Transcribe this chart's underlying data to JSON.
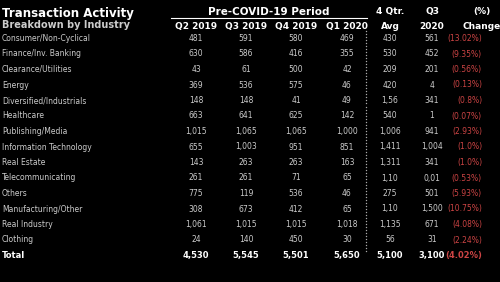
{
  "title": "Transaction Activity",
  "subtitle": "Breakdown by Industry",
  "header_group": "Pre-COVID-19 Period",
  "bg_color": "#000000",
  "text_color": "#cccccc",
  "header_text_color": "#ffffff",
  "change_neg_color": "#cc4444",
  "dotted_color": "#888888",
  "rows": [
    {
      "label": "Consumer/Non-Cyclical",
      "q2": "481",
      "q3": "591",
      "q4": "580",
      "q1": "469",
      "avg": "430",
      "q3_20": "561",
      "chg": "(13.02%)"
    },
    {
      "label": "Finance/Inv. Banking",
      "q2": "630",
      "q3": "586",
      "q4": "416",
      "q1": "355",
      "avg": "530",
      "q3_20": "452",
      "chg": "(9.35%)"
    },
    {
      "label": "Clearance/Utilities",
      "q2": "43",
      "q3": "61",
      "q4": "500",
      "q1": "42",
      "avg": "209",
      "q3_20": "201",
      "chg": "(0.56%)"
    },
    {
      "label": "Energy",
      "q2": "369",
      "q3": "536",
      "q4": "575",
      "q1": "46",
      "avg": "420",
      "q3_20": "4",
      "chg": "(0.13%)"
    },
    {
      "label": "Diversified/Industrials",
      "q2": "148",
      "q3": "148",
      "q4": "41",
      "q1": "49",
      "avg": "1,56",
      "q3_20": "341",
      "chg": "(0.8%)"
    },
    {
      "label": "Healthcare",
      "q2": "663",
      "q3": "641",
      "q4": "625",
      "q1": "142",
      "avg": "540",
      "q3_20": "1",
      "chg": "(0.07%)"
    },
    {
      "label": "Publishing/Media",
      "q2": "1,015",
      "q3": "1,065",
      "q4": "1,065",
      "q1": "1,000",
      "avg": "1,006",
      "q3_20": "941",
      "chg": "(2.93%)"
    },
    {
      "label": "Information Technology",
      "q2": "655",
      "q3": "1,003",
      "q4": "951",
      "q1": "851",
      "avg": "1,411",
      "q3_20": "1,004",
      "chg": "(1.0%)"
    },
    {
      "label": "Real Estate",
      "q2": "143",
      "q3": "263",
      "q4": "263",
      "q1": "163",
      "avg": "1,311",
      "q3_20": "341",
      "chg": "(1.0%)"
    },
    {
      "label": "Telecommunicating",
      "q2": "261",
      "q3": "261",
      "q4": "71",
      "q1": "65",
      "avg": "1,10",
      "q3_20": "0,01",
      "chg": "(0.53%)"
    },
    {
      "label": "Others",
      "q2": "775",
      "q3": "119",
      "q4": "536",
      "q1": "46",
      "avg": "275",
      "q3_20": "501",
      "chg": "(5.93%)"
    },
    {
      "label": "Manufacturing/Other",
      "q2": "308",
      "q3": "673",
      "q4": "412",
      "q1": "65",
      "avg": "1,10",
      "q3_20": "1,500",
      "chg": "(10.75%)"
    },
    {
      "label": "Real Industry",
      "q2": "1,061",
      "q3": "1,015",
      "q4": "1,015",
      "q1": "1,018",
      "avg": "1,135",
      "q3_20": "671",
      "chg": "(4.08%)"
    },
    {
      "label": "Clothing",
      "q2": "24",
      "q3": "140",
      "q4": "450",
      "q1": "30",
      "avg": "56",
      "q3_20": "31",
      "chg": "(2.24%)"
    },
    {
      "label": "Total",
      "q2": "4,530",
      "q3": "5,545",
      "q4": "5,501",
      "q1": "5,650",
      "avg": "5,100",
      "q3_20": "3,100",
      "chg": "(4.02%)"
    }
  ]
}
